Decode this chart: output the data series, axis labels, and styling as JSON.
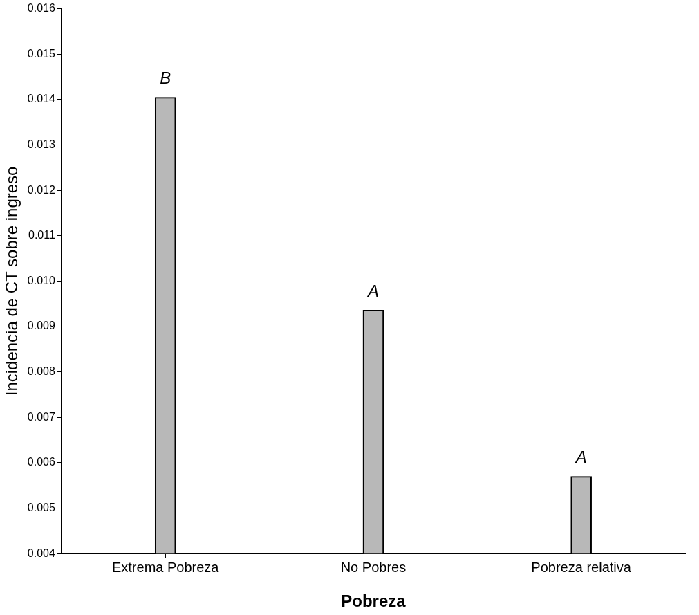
{
  "chart_data": {
    "type": "bar",
    "xlabel": "Pobreza",
    "ylabel": "Incidencia de CT sobre ingreso",
    "categories": [
      "Extrema Pobreza",
      "No Pobres",
      "Pobreza relativa"
    ],
    "values": [
      0.01405,
      0.00936,
      0.0057
    ],
    "color": "#b8b8b8",
    "ylim": [
      0.004,
      0.016
    ],
    "yticks": [
      {
        "value": 0.004,
        "label": "0.004"
      },
      {
        "value": 0.005,
        "label": "0.005"
      },
      {
        "value": 0.006,
        "label": "0.006"
      },
      {
        "value": 0.007,
        "label": "0.007"
      },
      {
        "value": 0.008,
        "label": "0.008"
      },
      {
        "value": 0.009,
        "label": "0.009"
      },
      {
        "value": 0.01,
        "label": "0.010"
      },
      {
        "value": 0.011,
        "label": "0.011"
      },
      {
        "value": 0.012,
        "label": "0.012"
      },
      {
        "value": 0.013,
        "label": "0.013"
      },
      {
        "value": 0.014,
        "label": "0.014"
      },
      {
        "value": 0.015,
        "label": "0.015"
      },
      {
        "value": 0.016,
        "label": "0.016"
      }
    ],
    "annotations": [
      "B",
      "A",
      "A"
    ],
    "grid": false,
    "legend": false
  }
}
